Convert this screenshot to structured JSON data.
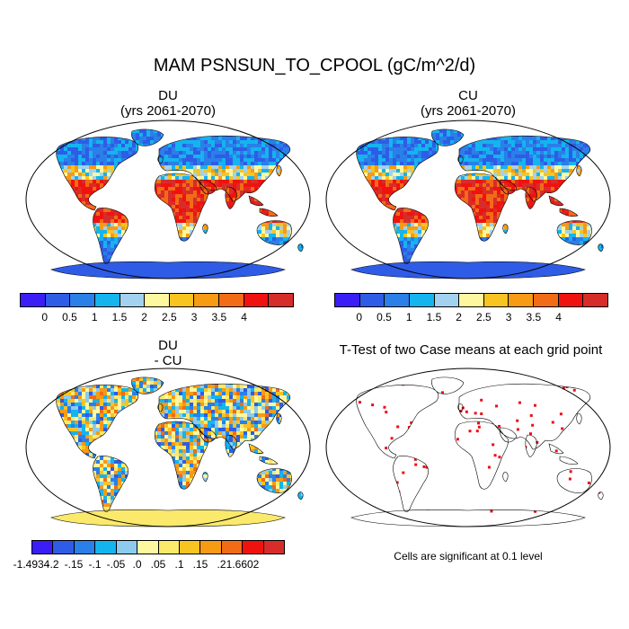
{
  "title": "MAM PSNSUN_TO_CPOOL (gC/m^2/d)",
  "panels": {
    "du": {
      "line1": "DU",
      "line2": "(yrs 2061-2070)"
    },
    "cu": {
      "line1": "CU",
      "line2": "(yrs 2061-2070)"
    },
    "diff": {
      "line1": "DU",
      "line2": "- CU"
    },
    "ttest": {
      "title": "T-Test of two Case means at each grid point",
      "note": "Cells are significant at 0.1 level"
    }
  },
  "colorbar_abs": {
    "colors": [
      "#3a1ef5",
      "#2f5ce6",
      "#2a7fe8",
      "#14b4ee",
      "#a2d2ef",
      "#fdf7a0",
      "#f8c420",
      "#f79a14",
      "#f26b16",
      "#f0120f",
      "#d62d2a"
    ],
    "labels": [
      "0",
      "0.5",
      "1",
      "1.5",
      "2",
      "2.5",
      "3",
      "3.5",
      "4"
    ]
  },
  "colorbar_diff": {
    "colors": [
      "#3a1ef5",
      "#2f5ce6",
      "#2a7fe8",
      "#14b4ee",
      "#8ccbee",
      "#fdf7a0",
      "#fbe96c",
      "#f8c420",
      "#f79a14",
      "#f26b16",
      "#f0120f",
      "#d62d2a"
    ],
    "labels": [
      "-1.4934",
      "-.2",
      "-.15",
      "-.1",
      "-.05",
      ".0",
      ".05",
      ".1",
      ".15",
      ".2",
      "1.6602"
    ]
  }
}
